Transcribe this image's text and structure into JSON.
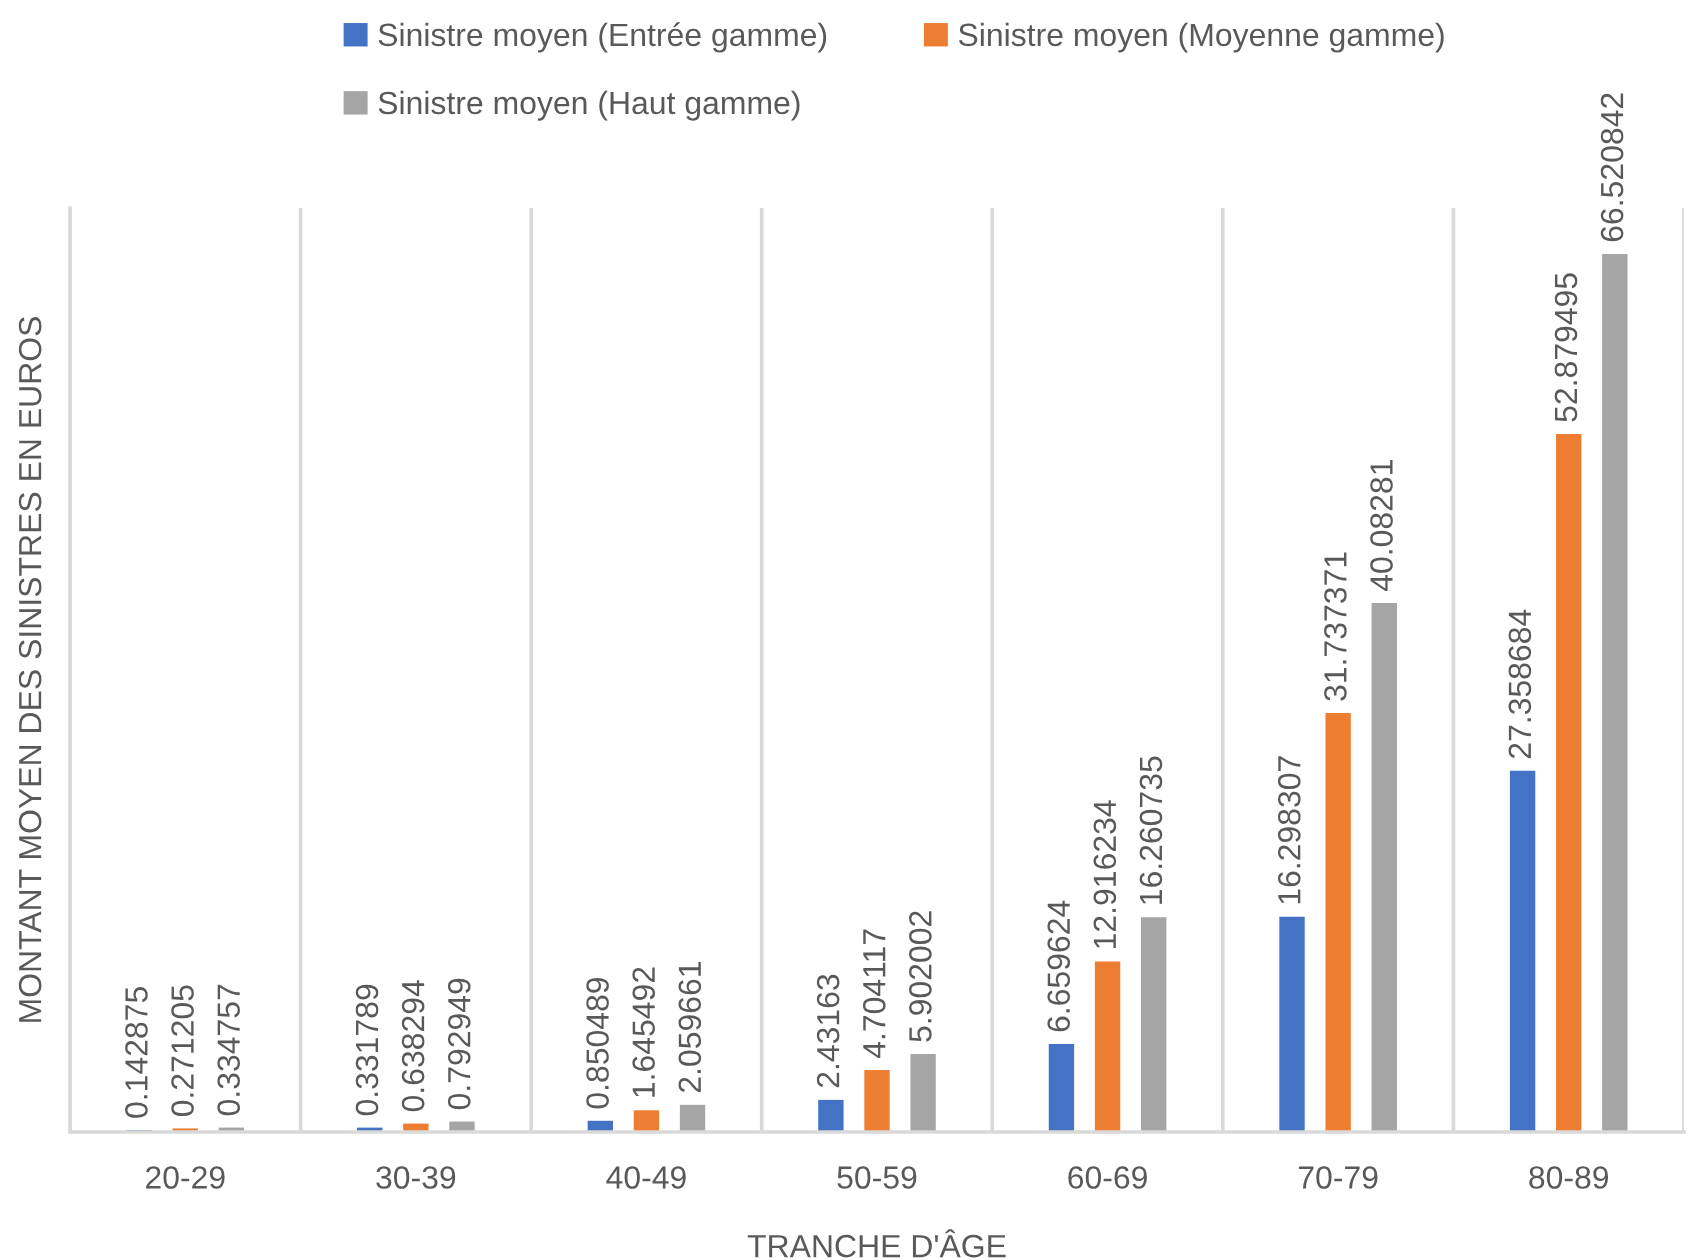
{
  "chart_data": {
    "type": "bar",
    "xlabel": "TRANCHE D'ÂGE",
    "ylabel": "MONTANT MOYEN DES SINISTRES EN EUROS",
    "categories": [
      "20-29",
      "30-39",
      "40-49",
      "50-59",
      "60-69",
      "70-79",
      "80-89"
    ],
    "series": [
      {
        "name": "Sinistre moyen (Entrée gamme)",
        "color": "#4472c4",
        "values": [
          0.142875,
          0.331789,
          0.850489,
          2.43163,
          6.659624,
          16.298307,
          27.358684
        ]
      },
      {
        "name": "Sinistre moyen (Moyenne gamme)",
        "color": "#ed7d31",
        "values": [
          0.271205,
          0.638294,
          1.645492,
          4.704117,
          12.916234,
          31.737371,
          52.879495
        ]
      },
      {
        "name": "Sinistre moyen (Haut gamme)",
        "color": "#a5a5a5",
        "values": [
          0.334757,
          0.792949,
          2.059661,
          5.902002,
          16.260735,
          40.08281,
          66.520842
        ]
      }
    ],
    "ylim": [
      0,
      70
    ],
    "tick_labels": "x",
    "grid": "x",
    "legend": "top",
    "data_labels": true
  }
}
